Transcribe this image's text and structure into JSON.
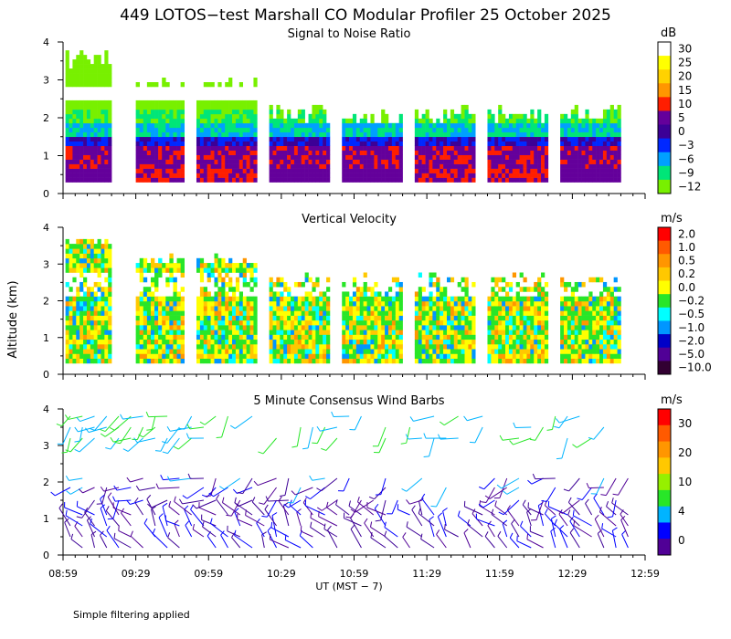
{
  "title": "449 LOTOS−test Marshall CO Modular Profiler 25 October 2025",
  "footnote": "Simple filtering applied",
  "ylabel": "Altitude (km)",
  "xlabel": "UT  (MST − 7)",
  "x_tick_labels": [
    "08:59",
    "09:29",
    "09:59",
    "10:29",
    "10:59",
    "11:29",
    "11:59",
    "12:29",
    "12:59"
  ],
  "y_tick_labels": [
    "0",
    "1",
    "2",
    "3",
    "4"
  ],
  "chart_data": [
    {
      "type": "heatmap",
      "title": "Signal to Noise Ratio",
      "xlim": [
        "08:59",
        "12:59"
      ],
      "ylim": [
        0,
        4
      ],
      "colorbar": {
        "unit": "dB",
        "labels": [
          "30",
          "25",
          "20",
          "15",
          "10",
          "5",
          "0",
          "−3",
          "−6",
          "−9",
          "−12"
        ],
        "colors": [
          "#ffffff",
          "#ffff00",
          "#ffd200",
          "#ff9600",
          "#ff1e00",
          "#64009b",
          "#3c0096",
          "#0028ff",
          "#00a0ff",
          "#00e678",
          "#78f000"
        ]
      },
      "data_gaps": [
        [
          "09:19",
          "09:29"
        ],
        [
          "09:49",
          "09:54"
        ],
        [
          "10:19",
          "10:24"
        ],
        [
          "10:49",
          "10:54"
        ],
        [
          "11:19",
          "11:24"
        ],
        [
          "11:49",
          "11:54"
        ],
        [
          "12:19",
          "12:24"
        ],
        [
          "12:49",
          "12:59"
        ]
      ]
    },
    {
      "type": "heatmap",
      "title": "Vertical Velocity",
      "xlim": [
        "08:59",
        "12:59"
      ],
      "ylim": [
        0,
        4
      ],
      "colorbar": {
        "unit": "m/s",
        "labels": [
          "2.0",
          "1.0",
          "0.5",
          "0.2",
          "0.0",
          "−0.2",
          "−0.5",
          "−1.0",
          "−2.0",
          "−5.0",
          "−10.0"
        ],
        "colors": [
          "#ff0000",
          "#ff5a00",
          "#ff9600",
          "#ffc800",
          "#ffff00",
          "#28e628",
          "#00ffff",
          "#0096ff",
          "#0000c8",
          "#500096",
          "#320032"
        ]
      }
    },
    {
      "type": "scatter",
      "title": "5 Minute Consensus Wind Barbs",
      "xlim": [
        "08:59",
        "12:59"
      ],
      "ylim": [
        0,
        4
      ],
      "colorbar": {
        "unit": "m/s",
        "labels": [
          "30",
          "20",
          "10",
          "4",
          "0"
        ],
        "colors": [
          "#ff0000",
          "#ff5a00",
          "#ff9600",
          "#ffc800",
          "#96f000",
          "#28e628",
          "#00b4ff",
          "#0000ff",
          "#500096"
        ]
      }
    }
  ]
}
